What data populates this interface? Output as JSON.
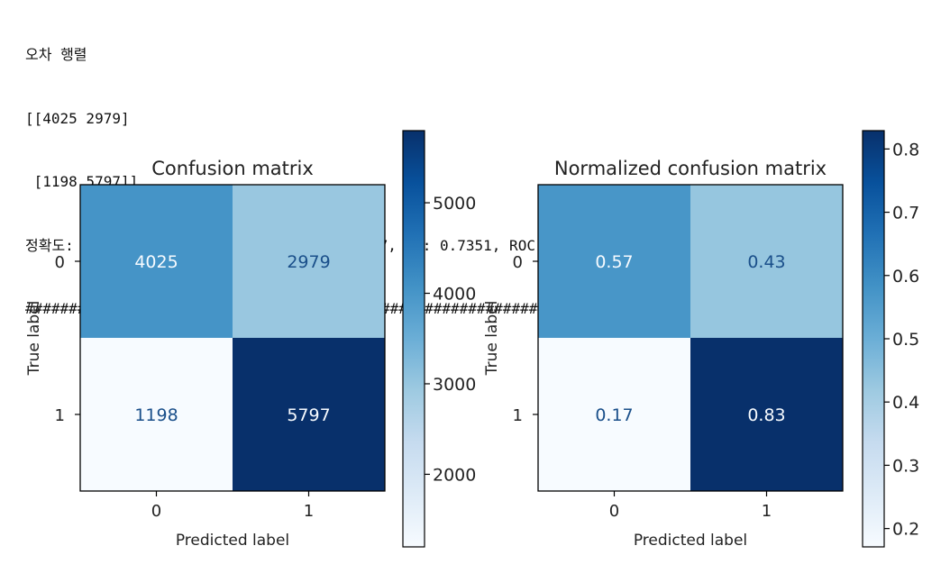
{
  "console": {
    "matrix_title": "오차 행렬",
    "matrix_row_1": "[[4025 2979]",
    "matrix_row_2": " [1198 5797]]",
    "metrics_line": "정확도: 0.7016, 정밀도: 0.6606, 재현율: 0.8287, F1: 0.7351, ROC-AUC: 0.7017",
    "separator": "#####################################################################################"
  },
  "chart_data": [
    {
      "type": "heatmap",
      "title": "Confusion matrix",
      "xlabel": "Predicted label",
      "ylabel": "True label",
      "x_categories": [
        "0",
        "1"
      ],
      "y_categories": [
        "0",
        "1"
      ],
      "values": [
        [
          4025,
          2979
        ],
        [
          1198,
          5797
        ]
      ],
      "cell_labels": [
        [
          "4025",
          "2979"
        ],
        [
          "1198",
          "5797"
        ]
      ],
      "colormap": "Blues",
      "colorbar": {
        "range": [
          1198,
          5797
        ],
        "ticks": [
          2000,
          3000,
          4000,
          5000
        ],
        "tick_labels": [
          "2000",
          "3000",
          "4000",
          "5000"
        ]
      }
    },
    {
      "type": "heatmap",
      "title": "Normalized confusion matrix",
      "xlabel": "Predicted label",
      "ylabel": "True label",
      "x_categories": [
        "0",
        "1"
      ],
      "y_categories": [
        "0",
        "1"
      ],
      "values": [
        [
          0.57,
          0.43
        ],
        [
          0.17,
          0.83
        ]
      ],
      "cell_labels": [
        [
          "0.57",
          "0.43"
        ],
        [
          "0.17",
          "0.83"
        ]
      ],
      "colormap": "Blues",
      "colorbar": {
        "range": [
          0.171,
          0.829
        ],
        "ticks": [
          0.2,
          0.3,
          0.4,
          0.5,
          0.6,
          0.7,
          0.8
        ],
        "tick_labels": [
          "0.2",
          "0.3",
          "0.4",
          "0.5",
          "0.6",
          "0.7",
          "0.8"
        ]
      }
    }
  ]
}
